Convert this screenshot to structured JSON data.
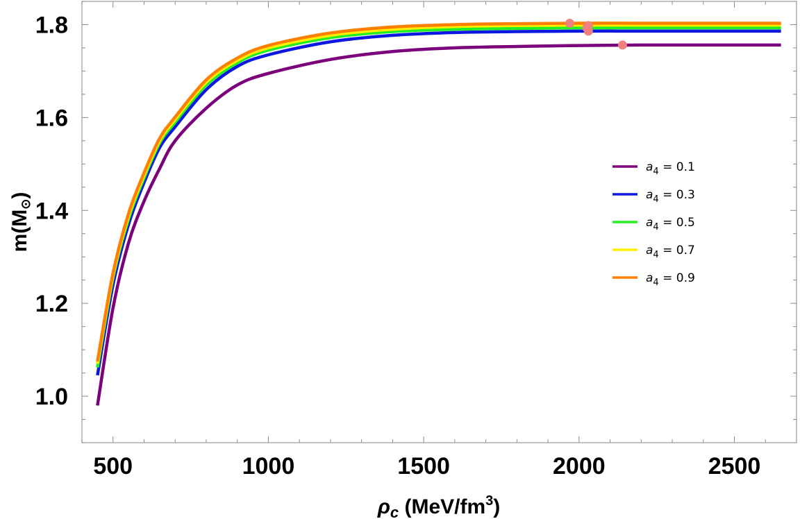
{
  "chart_data": {
    "type": "line",
    "title": "",
    "xlabel": {
      "symbol": "ρ",
      "subscript": "c",
      "units": " (MeV/fm",
      "units_sup": "3",
      "units_close": ")"
    },
    "ylabel": {
      "text": "m(M",
      "subscript": "⊙",
      "close": ")"
    },
    "xlim": [
      400,
      2700
    ],
    "ylim": [
      0.9,
      1.85
    ],
    "xticks": [
      500,
      1000,
      1500,
      2000,
      2500
    ],
    "xtick_labels": [
      "500",
      "1000",
      "1500",
      "2000",
      "2500"
    ],
    "yticks": [
      1.0,
      1.2,
      1.4,
      1.6,
      1.8
    ],
    "ytick_labels": [
      "1.0",
      "1.2",
      "1.4",
      "1.6",
      "1.8"
    ],
    "x": [
      450,
      500,
      550,
      600,
      650,
      700,
      800,
      900,
      1000,
      1200,
      1400,
      1600,
      1800,
      2000,
      2200,
      2400,
      2650
    ],
    "series": [
      {
        "name": "a4 = 0.1",
        "legend_symbol": "a",
        "legend_sub": "4",
        "legend_value": " = 0.1",
        "color": "#7b007b",
        "values": [
          0.98,
          1.19,
          1.33,
          1.42,
          1.49,
          1.55,
          1.62,
          1.67,
          1.695,
          1.725,
          1.742,
          1.75,
          1.753,
          1.755,
          1.756,
          1.756,
          1.756
        ],
        "max_point": {
          "x": 2140,
          "y": 1.756
        }
      },
      {
        "name": "a4 = 0.3",
        "legend_symbol": "a",
        "legend_sub": "4",
        "legend_value": " = 0.3",
        "color": "#0b18e0",
        "values": [
          1.045,
          1.24,
          1.37,
          1.46,
          1.535,
          1.58,
          1.66,
          1.71,
          1.735,
          1.763,
          1.777,
          1.783,
          1.785,
          1.786,
          1.786,
          1.786,
          1.786
        ],
        "max_point": {
          "x": 2030,
          "y": 1.786
        }
      },
      {
        "name": "a4 = 0.5",
        "legend_symbol": "a",
        "legend_sub": "4",
        "legend_value": " = 0.5",
        "color": "#22ee22",
        "values": [
          1.062,
          1.255,
          1.382,
          1.47,
          1.545,
          1.59,
          1.67,
          1.718,
          1.745,
          1.772,
          1.785,
          1.79,
          1.792,
          1.793,
          1.793,
          1.793,
          1.793
        ],
        "max_point": {
          "x": 2025,
          "y": 1.793
        }
      },
      {
        "name": "a4 = 0.7",
        "legend_symbol": "a",
        "legend_sub": "4",
        "legend_value": " = 0.7",
        "color": "#ffee00",
        "values": [
          1.07,
          1.26,
          1.388,
          1.476,
          1.55,
          1.596,
          1.676,
          1.723,
          1.75,
          1.777,
          1.79,
          1.796,
          1.798,
          1.799,
          1.799,
          1.799,
          1.799
        ],
        "max_point": {
          "x": 2030,
          "y": 1.798
        }
      },
      {
        "name": "a4 = 0.9",
        "legend_symbol": "a",
        "legend_sub": "4",
        "legend_value": " = 0.9",
        "color": "#ff8000",
        "values": [
          1.075,
          1.265,
          1.393,
          1.481,
          1.555,
          1.601,
          1.681,
          1.728,
          1.755,
          1.782,
          1.795,
          1.8,
          1.802,
          1.803,
          1.803,
          1.803,
          1.803
        ],
        "max_point": {
          "x": 1970,
          "y": 1.803
        }
      }
    ],
    "max_point_color": "#f08080",
    "legend_position": "center-right",
    "grid": false
  }
}
